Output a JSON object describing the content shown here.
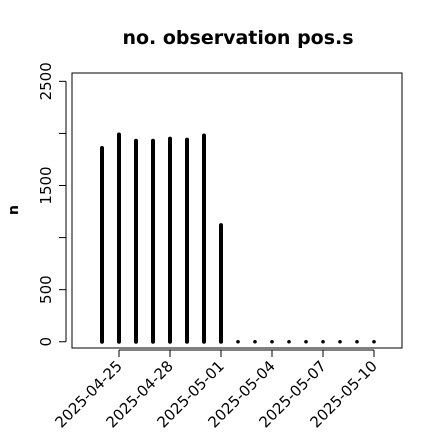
{
  "chart_data": {
    "type": "bar",
    "title": "no. observation pos.s",
    "xlabel": "",
    "ylabel": "n",
    "x": [
      "2025-04-24",
      "2025-04-25",
      "2025-04-26",
      "2025-04-27",
      "2025-04-28",
      "2025-04-29",
      "2025-04-30",
      "2025-05-01",
      "2025-05-02",
      "2025-05-03",
      "2025-05-04",
      "2025-05-05",
      "2025-05-06",
      "2025-05-07",
      "2025-05-08",
      "2025-05-09",
      "2025-05-10"
    ],
    "values": [
      1860,
      1990,
      1930,
      1930,
      1950,
      1940,
      1980,
      1120,
      0,
      0,
      0,
      0,
      0,
      0,
      0,
      0,
      0
    ],
    "xticks": [
      "2025-04-25",
      "2025-04-28",
      "2025-05-01",
      "2025-05-04",
      "2025-05-07",
      "2025-05-10"
    ],
    "highlight_tick": "2025-05-01",
    "highlight_color": "#228B22",
    "yticks": [
      "0",
      "500",
      "1500",
      "2500"
    ],
    "ytick_values": [
      0,
      500,
      1000,
      1500,
      2000,
      2500
    ],
    "ylim": [
      -60,
      2580
    ],
    "line_color": "#000000",
    "grid": false,
    "legend": false
  }
}
